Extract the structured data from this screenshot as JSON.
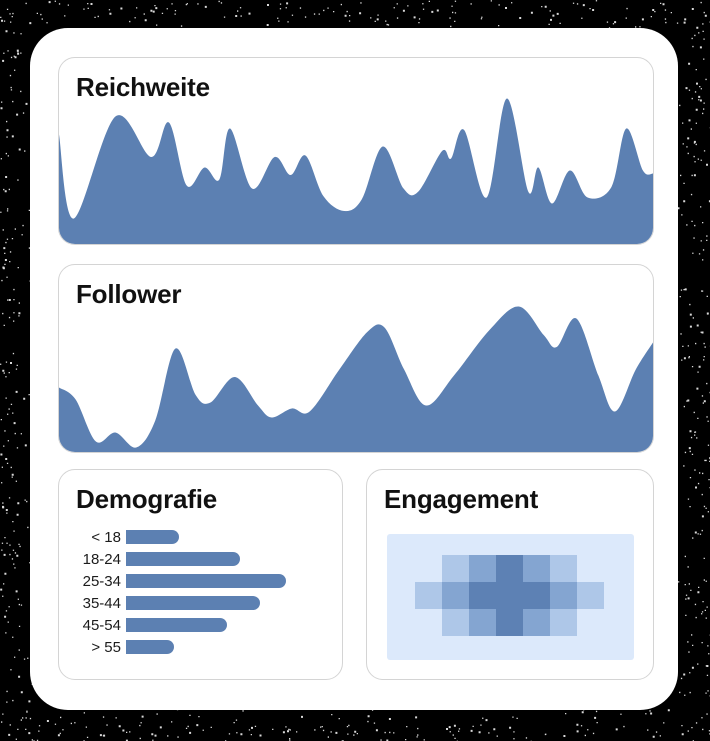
{
  "window": {
    "background_color": "#000000",
    "card_color": "#ffffff",
    "panel_border_color": "#d4d4d4",
    "text_color": "#111111",
    "accent_color": "#5c80b2"
  },
  "panels": {
    "reichweite": {
      "title": "Reichweite"
    },
    "follower": {
      "title": "Follower"
    },
    "demografie": {
      "title": "Demografie"
    },
    "engagement": {
      "title": "Engagement"
    }
  },
  "chart_data": [
    {
      "id": "reichweite",
      "type": "area",
      "title": "Reichweite",
      "color": "#5c80b2",
      "grid": false,
      "legend": null,
      "axes_visible": false,
      "x_range_percent": [
        0,
        100
      ],
      "y_range_percent": [
        0,
        100
      ],
      "points_percent": [
        [
          0,
          73
        ],
        [
          2.5,
          17
        ],
        [
          9.5,
          85
        ],
        [
          15.5,
          58
        ],
        [
          18.5,
          81
        ],
        [
          21.5,
          39
        ],
        [
          24.5,
          51
        ],
        [
          27,
          43
        ],
        [
          28.8,
          77
        ],
        [
          32.5,
          37
        ],
        [
          36.3,
          58
        ],
        [
          39,
          46
        ],
        [
          41.5,
          59
        ],
        [
          44.5,
          32
        ],
        [
          48,
          22
        ],
        [
          51,
          30
        ],
        [
          54.5,
          65
        ],
        [
          58,
          37
        ],
        [
          60.5,
          35
        ],
        [
          64.5,
          62
        ],
        [
          66,
          57
        ],
        [
          68.2,
          76
        ],
        [
          72,
          31
        ],
        [
          75.4,
          97
        ],
        [
          79,
          35
        ],
        [
          80.7,
          51
        ],
        [
          83,
          27
        ],
        [
          86,
          49
        ],
        [
          89,
          31
        ],
        [
          93,
          38
        ],
        [
          95.5,
          77
        ],
        [
          98.3,
          49
        ],
        [
          100,
          47
        ]
      ]
    },
    {
      "id": "follower",
      "type": "area",
      "title": "Follower",
      "color": "#5c80b2",
      "grid": false,
      "legend": null,
      "axes_visible": false,
      "x_range_percent": [
        0,
        100
      ],
      "y_range_percent": [
        0,
        100
      ],
      "points_percent": [
        [
          0,
          43
        ],
        [
          2.8,
          35
        ],
        [
          6.2,
          7
        ],
        [
          9.5,
          13
        ],
        [
          13,
          3
        ],
        [
          16.2,
          21
        ],
        [
          19.6,
          69
        ],
        [
          23,
          38
        ],
        [
          25.5,
          33
        ],
        [
          29.6,
          50
        ],
        [
          33.5,
          31
        ],
        [
          35.8,
          23
        ],
        [
          39.2,
          29
        ],
        [
          42.2,
          27
        ],
        [
          47.2,
          55
        ],
        [
          51.9,
          80
        ],
        [
          54.8,
          83
        ],
        [
          58.1,
          55
        ],
        [
          61.8,
          31
        ],
        [
          66.5,
          51
        ],
        [
          72.4,
          81
        ],
        [
          77.4,
          97
        ],
        [
          81.6,
          78
        ],
        [
          83.8,
          70
        ],
        [
          87.1,
          89
        ],
        [
          90.8,
          51
        ],
        [
          93.6,
          27
        ],
        [
          97.1,
          55
        ],
        [
          100,
          73
        ]
      ]
    },
    {
      "id": "demografie",
      "type": "bar",
      "title": "Demografie",
      "orientation": "horizontal",
      "color": "#5c80b2",
      "categories": [
        "< 18",
        "18-24",
        "25-34",
        "35-44",
        "45-54",
        "> 55"
      ],
      "values_percent_of_max": [
        33,
        71,
        100,
        84,
        63,
        30
      ]
    },
    {
      "id": "engagement",
      "type": "heatmap",
      "title": "Engagement",
      "rows": 3,
      "cols": 7,
      "values": [
        [
          0,
          1,
          2,
          3,
          2,
          1,
          0
        ],
        [
          1,
          2,
          3,
          3,
          3,
          2,
          1
        ],
        [
          0,
          1,
          2,
          3,
          2,
          1,
          0
        ]
      ],
      "palette": [
        "none",
        "#aec7e8",
        "#84a5d1",
        "#5d81b4"
      ],
      "background": "#dce9fb"
    }
  ]
}
